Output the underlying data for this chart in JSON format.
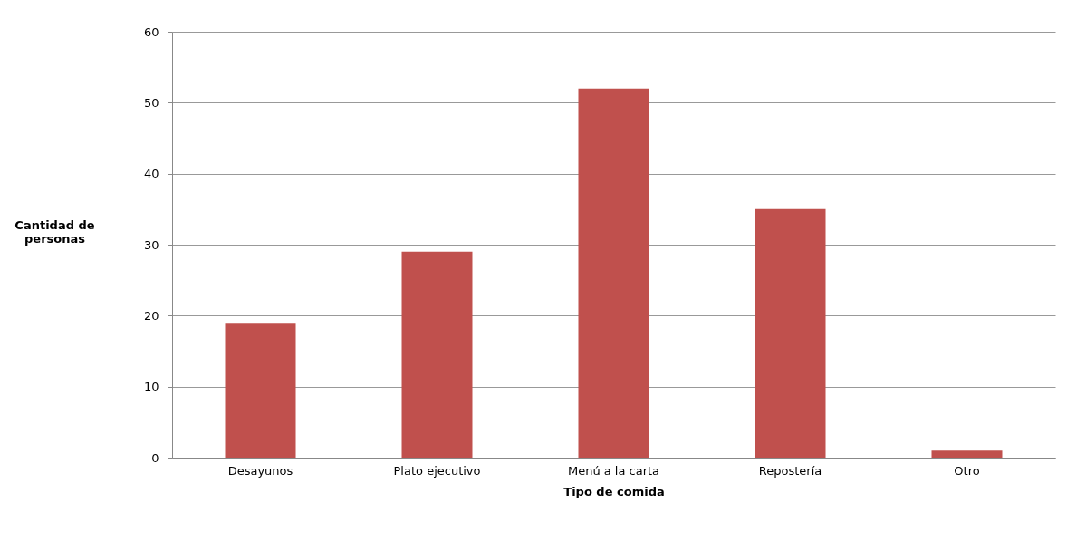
{
  "chart_data": {
    "type": "bar",
    "xlabel": "Tipo de comida",
    "ylabel": "Cantidad de personas",
    "categories": [
      "Desayunos",
      "Plato ejecutivo",
      "Menú a la carta",
      "Repostería",
      "Otro"
    ],
    "values": [
      19,
      29,
      52,
      35,
      1
    ],
    "color": "#c0504d",
    "ylim": [
      0,
      60
    ],
    "yticks": [
      0,
      10,
      20,
      30,
      40,
      50,
      60
    ],
    "grid": "y",
    "legend": false
  }
}
